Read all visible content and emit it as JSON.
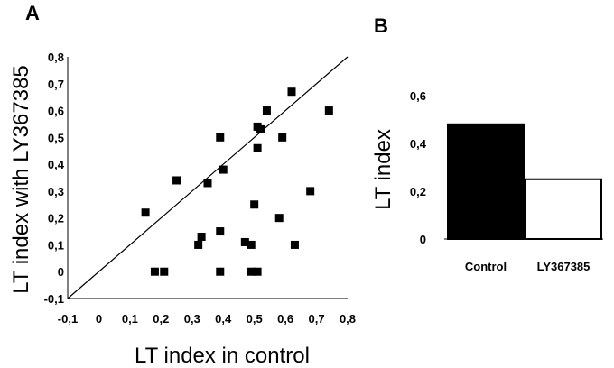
{
  "chart_data": [
    {
      "panel": "A",
      "type": "scatter",
      "xlabel": "LT index in control",
      "ylabel": "LT index with LY367385",
      "xlim": [
        -0.1,
        0.8
      ],
      "ylim": [
        -0.1,
        0.8
      ],
      "x_ticks": [
        "-0,1",
        "0",
        "0,1",
        "0,2",
        "0,3",
        "0,4",
        "0,5",
        "0,6",
        "0,7",
        "0,8"
      ],
      "y_ticks": [
        "-0,1",
        "0",
        "0,1",
        "0,2",
        "0,3",
        "0,4",
        "0,5",
        "0,6",
        "0,7",
        "0,8"
      ],
      "identity_line": true,
      "marker": "square",
      "points": [
        {
          "x": 0.15,
          "y": 0.22
        },
        {
          "x": 0.18,
          "y": 0.0
        },
        {
          "x": 0.21,
          "y": 0.0
        },
        {
          "x": 0.25,
          "y": 0.34
        },
        {
          "x": 0.32,
          "y": 0.1
        },
        {
          "x": 0.33,
          "y": 0.13
        },
        {
          "x": 0.35,
          "y": 0.33
        },
        {
          "x": 0.39,
          "y": 0.5
        },
        {
          "x": 0.39,
          "y": 0.15
        },
        {
          "x": 0.39,
          "y": 0.0
        },
        {
          "x": 0.4,
          "y": 0.38
        },
        {
          "x": 0.47,
          "y": 0.11
        },
        {
          "x": 0.49,
          "y": 0.1
        },
        {
          "x": 0.49,
          "y": 0.0
        },
        {
          "x": 0.5,
          "y": 0.25
        },
        {
          "x": 0.51,
          "y": 0.0
        },
        {
          "x": 0.51,
          "y": 0.46
        },
        {
          "x": 0.51,
          "y": 0.54
        },
        {
          "x": 0.52,
          "y": 0.53
        },
        {
          "x": 0.54,
          "y": 0.6
        },
        {
          "x": 0.58,
          "y": 0.2
        },
        {
          "x": 0.59,
          "y": 0.5
        },
        {
          "x": 0.62,
          "y": 0.67
        },
        {
          "x": 0.63,
          "y": 0.1
        },
        {
          "x": 0.68,
          "y": 0.3
        },
        {
          "x": 0.74,
          "y": 0.6
        }
      ]
    },
    {
      "panel": "B",
      "type": "bar",
      "categories": [
        "Control",
        "LY367385"
      ],
      "values": [
        0.48,
        0.25
      ],
      "colors": [
        "#000000",
        "#ffffff"
      ],
      "ylabel": "LT index",
      "ylim": [
        0,
        0.6
      ],
      "y_ticks": [
        "0",
        "0,2",
        "0,4",
        "0,6"
      ]
    }
  ]
}
